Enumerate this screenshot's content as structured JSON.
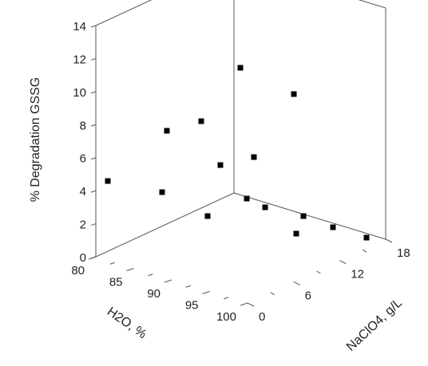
{
  "chart_data": {
    "type": "scatter3d",
    "title": "",
    "zlabel": "% Degradation GSSG",
    "xlabel": "H2O, %",
    "ylabel": "NaClO4, g/L",
    "z_ticks": [
      "0",
      "2",
      "4",
      "6",
      "8",
      "10",
      "12",
      "14"
    ],
    "x_ticks": [
      "80",
      "85",
      "90",
      "95",
      "100"
    ],
    "y_ticks": [
      "0",
      "6",
      "12",
      "18"
    ],
    "zlim": [
      0,
      14
    ],
    "grid": false,
    "legend": "none",
    "points": [
      {
        "x": 80,
        "y": 0,
        "z": 4.7
      },
      {
        "x": 90,
        "y": 0,
        "z": 7.3
      },
      {
        "x": 90,
        "y": 0,
        "z": 3.0
      },
      {
        "x": 100,
        "y": 0,
        "z": 1.2
      },
      {
        "x": 90,
        "y": 6,
        "z": 6.6
      },
      {
        "x": 100,
        "y": 6,
        "z": 3.4
      },
      {
        "x": 100,
        "y": 12,
        "z": 3.1
      },
      {
        "x": 80,
        "y": 6,
        "z": 11.3
      },
      {
        "x": 90,
        "y": 12,
        "z": 8.6
      },
      {
        "x": 80,
        "y": 12,
        "z": 2.3
      },
      {
        "x": 90,
        "y": 18,
        "z": 1.3
      },
      {
        "x": 100,
        "y": 18,
        "z": 1.2
      },
      {
        "x": 80,
        "y": 18,
        "z": 0.9
      },
      {
        "x": 80,
        "y": 0,
        "z": 0.6
      },
      {
        "x": 85,
        "y": 0,
        "z": 0.4
      }
    ]
  }
}
